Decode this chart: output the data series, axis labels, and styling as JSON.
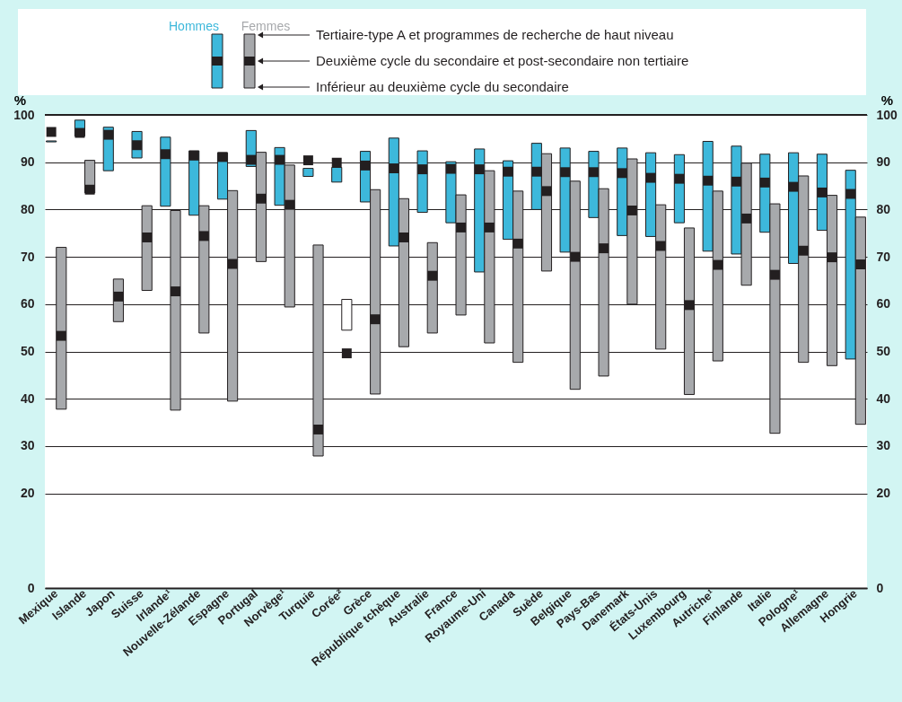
{
  "chart_data": {
    "type": "bar",
    "ylabel": "%",
    "y2label": "%",
    "categories": [
      "Mexique",
      "Islande",
      "Japon",
      "Suisse",
      "Irlande¹",
      "Nouvelle-Zélande",
      "Espagne",
      "Portugal",
      "Norvège¹",
      "Turquie",
      "Corée²",
      "Grèce",
      "République tchèque",
      "Australie",
      "France",
      "Royaume-Uni",
      "Canada",
      "Suède",
      "Belgique",
      "Pays-Bas",
      "Danemark",
      "États-Unis",
      "Luxembourg",
      "Autriche¹",
      "Finlande",
      "Italie",
      "Pologne¹",
      "Allemagne",
      "Hongrie"
    ],
    "ylim": [
      0,
      100
    ],
    "yticks": [
      0,
      20,
      30,
      40,
      50,
      60,
      70,
      80,
      90,
      100
    ],
    "y2lim": [
      0,
      100
    ],
    "y2ticks": [
      0,
      20,
      30,
      40,
      50,
      60,
      70,
      80,
      90,
      100
    ],
    "grid": "y",
    "legend": "top",
    "marker": "square",
    "annotations": [
      "Tertiaire-type A et programmes de recherche de haut niveau",
      "Deuxième cycle du secondaire et post-secondaire non tertiaire",
      "Inférieur au deuxième cycle du secondaire"
    ],
    "series": [
      {
        "name": "Hommes",
        "type": "bar",
        "color": "#3db8db",
        "base": [
          94.3,
          95.5,
          88.2,
          90.9,
          80.7,
          78.8,
          82.2,
          89.1,
          80.9,
          87.0,
          85.8,
          81.6,
          72.3,
          79.4,
          77.2,
          66.8,
          73.7,
          80.0,
          71.0,
          78.3,
          74.5,
          74.3,
          77.2,
          71.2,
          70.6,
          75.2,
          68.6,
          75.6,
          48.4
        ],
        "values": [
          0.2,
          3.4,
          9.2,
          5.6,
          14.6,
          13.6,
          9.8,
          7.6,
          12.2,
          1.7,
          3.1,
          10.7,
          22.8,
          13.0,
          12.9,
          26.0,
          16.6,
          14.0,
          22.0,
          14.0,
          18.5,
          17.7,
          14.4,
          23.2,
          22.8,
          16.5,
          23.4,
          16.1,
          39.9
        ]
      },
      {
        "name": "Femmes",
        "type": "bar",
        "color": "#a7a9ac",
        "colors": [
          "#a7a9ac",
          "#a7a9ac",
          "#a7a9ac",
          "#a7a9ac",
          "#a7a9ac",
          "#a7a9ac",
          "#a7a9ac",
          "#a7a9ac",
          "#a7a9ac",
          "#a7a9ac",
          "#ffffff",
          "#a7a9ac",
          "#a7a9ac",
          "#a7a9ac",
          "#a7a9ac",
          "#a7a9ac",
          "#a7a9ac",
          "#a7a9ac",
          "#a7a9ac",
          "#a7a9ac",
          "#a7a9ac",
          "#a7a9ac",
          "#a7a9ac",
          "#a7a9ac",
          "#a7a9ac",
          "#a7a9ac",
          "#a7a9ac",
          "#a7a9ac",
          "#a7a9ac"
        ],
        "base": [
          37.8,
          83.5,
          56.3,
          62.9,
          37.6,
          53.9,
          39.5,
          69.0,
          59.4,
          27.9,
          54.5,
          41.0,
          51.0,
          53.9,
          57.7,
          51.8,
          47.7,
          67.0,
          42.0,
          44.8,
          60.0,
          50.5,
          40.9,
          48.0,
          64.0,
          32.7,
          47.7,
          47.0,
          34.6
        ],
        "values": [
          34.2,
          6.9,
          9.0,
          17.9,
          42.2,
          26.9,
          44.5,
          23.1,
          30.0,
          44.6,
          6.5,
          43.2,
          31.3,
          19.1,
          25.4,
          36.4,
          36.2,
          24.8,
          44.0,
          39.6,
          30.7,
          30.5,
          35.2,
          35.9,
          25.8,
          48.5,
          39.4,
          36.0,
          43.8
        ]
      },
      {
        "type": "scatter",
        "color": "#231f20",
        "x": [
          "Mexique",
          "Islande",
          "Japon",
          "Suisse",
          "Irlande¹",
          "Nouvelle-Zélande",
          "Espagne",
          "Portugal",
          "Norvège¹",
          "Turquie",
          "Corée²",
          "Grèce",
          "République tchèque",
          "Australie",
          "France",
          "Royaume-Uni",
          "Canada",
          "Suède",
          "Belgique",
          "Pays-Bas",
          "Danemark",
          "États-Unis",
          "Luxembourg",
          "Autriche¹",
          "Finlande",
          "Italie",
          "Pologne¹",
          "Allemagne",
          "Hongrie"
        ],
        "values": [
          96.4,
          96.2,
          95.8,
          93.6,
          91.7,
          91.4,
          91.1,
          90.5,
          90.5,
          90.4,
          89.9,
          89.3,
          88.7,
          88.5,
          88.6,
          88.5,
          88.0,
          88.0,
          87.9,
          87.9,
          87.7,
          86.7,
          86.5,
          86.1,
          85.9,
          85.7,
          84.8,
          83.6,
          83.3
        ]
      },
      {
        "type": "scatter",
        "color": "#231f20",
        "x": [
          "Mexique",
          "Islande",
          "Japon",
          "Suisse",
          "Irlande¹",
          "Nouvelle-Zélande",
          "Espagne",
          "Portugal",
          "Norvège¹",
          "Turquie",
          "Corée²",
          "Grèce",
          "République tchèque",
          "Australie",
          "France",
          "Royaume-Uni",
          "Canada",
          "Suède",
          "Belgique",
          "Pays-Bas",
          "Danemark",
          "États-Unis",
          "Luxembourg",
          "Autriche¹",
          "Finlande",
          "Italie",
          "Pologne¹",
          "Allemagne",
          "Hongrie"
        ],
        "values": [
          53.3,
          84.2,
          61.6,
          74.1,
          62.7,
          74.4,
          68.5,
          82.3,
          81.0,
          33.5,
          49.6,
          56.8,
          74.1,
          66.0,
          76.2,
          76.2,
          72.8,
          83.9,
          70.0,
          71.8,
          79.8,
          72.3,
          59.8,
          68.3,
          78.1,
          66.2,
          71.3,
          69.9,
          68.4
        ]
      }
    ]
  }
}
